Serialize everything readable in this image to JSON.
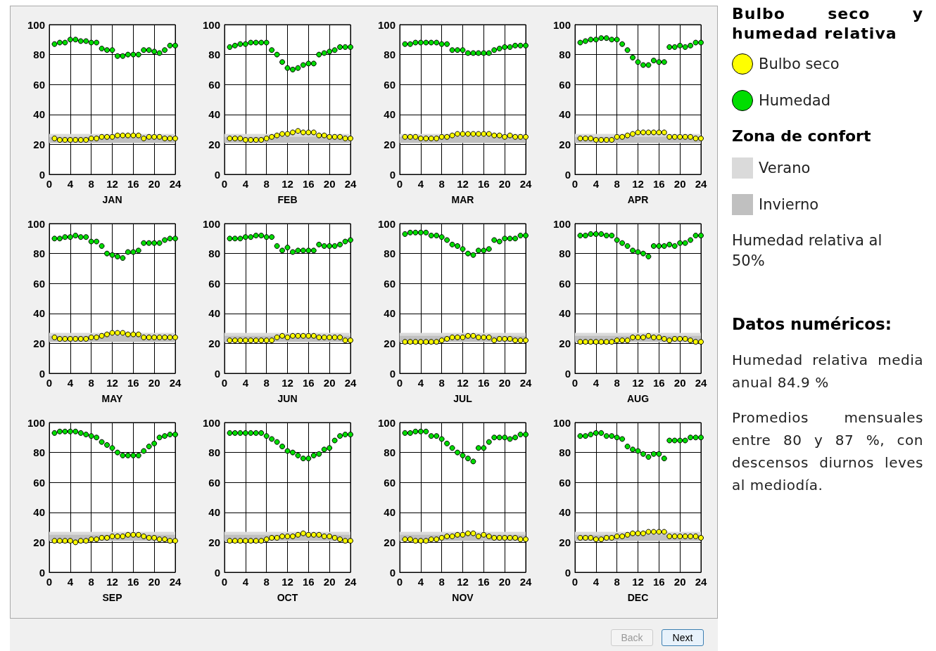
{
  "chart_data": [
    {
      "type": "scatter",
      "xlabel": "JAN",
      "legend": "right",
      "legend_title": "Bulbo seco y humedad relativa",
      "annotations": [
        "Zona de confort",
        "Humedad relativa al 50%"
      ],
      "x": [
        1,
        2,
        3,
        4,
        5,
        6,
        7,
        8,
        9,
        10,
        11,
        12,
        13,
        14,
        15,
        16,
        17,
        18,
        19,
        20,
        21,
        22,
        23,
        24
      ],
      "xlim": [
        0,
        24
      ],
      "xticks": [
        0,
        4,
        8,
        12,
        16,
        20,
        24
      ],
      "ylim": [
        0,
        100
      ],
      "yticks": [
        0,
        20,
        40,
        60,
        80,
        100
      ],
      "grid": true,
      "marker": "circle",
      "bands": [
        {
          "axis": "y",
          "from": 21,
          "to": 27,
          "label": "Verano",
          "color": "#dadada"
        },
        {
          "axis": "y",
          "from": 21,
          "to": 25,
          "label": "Invierno",
          "color": "#c0c0c0"
        }
      ],
      "series": [
        {
          "name": "Bulbo seco",
          "color": "#ffff00",
          "values": [
            24,
            23,
            23,
            23,
            23,
            23,
            23,
            24,
            24,
            25,
            25,
            25,
            26,
            26,
            26,
            26,
            26,
            24,
            25,
            25,
            25,
            24,
            24,
            24
          ]
        },
        {
          "name": "Humedad",
          "color": "#00dd00",
          "values": [
            87,
            88,
            88,
            90,
            90,
            89,
            89,
            88,
            88,
            84,
            83,
            83,
            79,
            79,
            80,
            80,
            80,
            83,
            83,
            82,
            81,
            83,
            86,
            86
          ]
        }
      ]
    },
    {
      "type": "scatter",
      "xlabel": "FEB",
      "x": [
        1,
        2,
        3,
        4,
        5,
        6,
        7,
        8,
        9,
        10,
        11,
        12,
        13,
        14,
        15,
        16,
        17,
        18,
        19,
        20,
        21,
        22,
        23,
        24
      ],
      "xlim": [
        0,
        24
      ],
      "xticks": [
        0,
        4,
        8,
        12,
        16,
        20,
        24
      ],
      "ylim": [
        0,
        100
      ],
      "yticks": [
        0,
        20,
        40,
        60,
        80,
        100
      ],
      "grid": true,
      "marker": "circle",
      "bands": [
        {
          "axis": "y",
          "from": 21,
          "to": 27,
          "color": "#dadada"
        },
        {
          "axis": "y",
          "from": 21,
          "to": 25,
          "color": "#c0c0c0"
        }
      ],
      "series": [
        {
          "color": "#ffff00",
          "values": [
            24,
            24,
            24,
            23,
            23,
            23,
            23,
            24,
            25,
            26,
            27,
            27,
            28,
            29,
            28,
            28,
            28,
            26,
            26,
            25,
            25,
            25,
            24,
            24
          ]
        },
        {
          "color": "#00dd00",
          "values": [
            85,
            86,
            87,
            87,
            88,
            88,
            88,
            88,
            83,
            80,
            75,
            71,
            70,
            71,
            73,
            74,
            74,
            80,
            81,
            82,
            83,
            85,
            85,
            85
          ]
        }
      ]
    },
    {
      "type": "scatter",
      "xlabel": "MAR",
      "x": [
        1,
        2,
        3,
        4,
        5,
        6,
        7,
        8,
        9,
        10,
        11,
        12,
        13,
        14,
        15,
        16,
        17,
        18,
        19,
        20,
        21,
        22,
        23,
        24
      ],
      "xlim": [
        0,
        24
      ],
      "xticks": [
        0,
        4,
        8,
        12,
        16,
        20,
        24
      ],
      "ylim": [
        0,
        100
      ],
      "yticks": [
        0,
        20,
        40,
        60,
        80,
        100
      ],
      "grid": true,
      "marker": "circle",
      "bands": [
        {
          "axis": "y",
          "from": 21,
          "to": 27,
          "color": "#dadada"
        },
        {
          "axis": "y",
          "from": 21,
          "to": 25,
          "color": "#c0c0c0"
        }
      ],
      "series": [
        {
          "color": "#ffff00",
          "values": [
            25,
            25,
            25,
            24,
            24,
            24,
            24,
            25,
            25,
            26,
            27,
            27,
            27,
            27,
            27,
            27,
            27,
            26,
            26,
            25,
            26,
            25,
            25,
            25
          ]
        },
        {
          "color": "#00dd00",
          "values": [
            87,
            87,
            88,
            88,
            88,
            88,
            88,
            87,
            87,
            83,
            83,
            83,
            81,
            81,
            81,
            81,
            81,
            83,
            84,
            85,
            85,
            86,
            86,
            86
          ]
        }
      ]
    },
    {
      "type": "scatter",
      "xlabel": "APR",
      "x": [
        1,
        2,
        3,
        4,
        5,
        6,
        7,
        8,
        9,
        10,
        11,
        12,
        13,
        14,
        15,
        16,
        17,
        18,
        19,
        20,
        21,
        22,
        23,
        24
      ],
      "xlim": [
        0,
        24
      ],
      "xticks": [
        0,
        4,
        8,
        12,
        16,
        20,
        24
      ],
      "ylim": [
        0,
        100
      ],
      "yticks": [
        0,
        20,
        40,
        60,
        80,
        100
      ],
      "grid": true,
      "marker": "circle",
      "bands": [
        {
          "axis": "y",
          "from": 21,
          "to": 27,
          "color": "#dadada"
        },
        {
          "axis": "y",
          "from": 21,
          "to": 25,
          "color": "#c0c0c0"
        }
      ],
      "series": [
        {
          "color": "#ffff00",
          "values": [
            24,
            24,
            24,
            23,
            23,
            23,
            23,
            25,
            25,
            26,
            27,
            28,
            28,
            28,
            28,
            28,
            28,
            25,
            25,
            25,
            25,
            25,
            24,
            24
          ]
        },
        {
          "color": "#00dd00",
          "values": [
            88,
            89,
            90,
            90,
            91,
            91,
            90,
            90,
            87,
            83,
            78,
            75,
            73,
            73,
            76,
            75,
            75,
            85,
            85,
            86,
            85,
            86,
            88,
            88
          ]
        }
      ]
    },
    {
      "type": "scatter",
      "xlabel": "MAY",
      "x": [
        1,
        2,
        3,
        4,
        5,
        6,
        7,
        8,
        9,
        10,
        11,
        12,
        13,
        14,
        15,
        16,
        17,
        18,
        19,
        20,
        21,
        22,
        23,
        24
      ],
      "xlim": [
        0,
        24
      ],
      "xticks": [
        0,
        4,
        8,
        12,
        16,
        20,
        24
      ],
      "ylim": [
        0,
        100
      ],
      "yticks": [
        0,
        20,
        40,
        60,
        80,
        100
      ],
      "grid": true,
      "marker": "circle",
      "bands": [
        {
          "axis": "y",
          "from": 21,
          "to": 27,
          "color": "#dadada"
        },
        {
          "axis": "y",
          "from": 21,
          "to": 25,
          "color": "#c0c0c0"
        }
      ],
      "series": [
        {
          "color": "#ffff00",
          "values": [
            24,
            23,
            23,
            23,
            23,
            23,
            23,
            24,
            24,
            25,
            26,
            27,
            27,
            27,
            26,
            26,
            26,
            24,
            24,
            24,
            24,
            24,
            24,
            24
          ]
        },
        {
          "color": "#00dd00",
          "values": [
            90,
            90,
            91,
            91,
            92,
            91,
            91,
            88,
            88,
            85,
            80,
            79,
            78,
            77,
            81,
            81,
            82,
            87,
            87,
            87,
            87,
            89,
            90,
            90
          ]
        }
      ]
    },
    {
      "type": "scatter",
      "xlabel": "JUN",
      "x": [
        1,
        2,
        3,
        4,
        5,
        6,
        7,
        8,
        9,
        10,
        11,
        12,
        13,
        14,
        15,
        16,
        17,
        18,
        19,
        20,
        21,
        22,
        23,
        24
      ],
      "xlim": [
        0,
        24
      ],
      "xticks": [
        0,
        4,
        8,
        12,
        16,
        20,
        24
      ],
      "ylim": [
        0,
        100
      ],
      "yticks": [
        0,
        20,
        40,
        60,
        80,
        100
      ],
      "grid": true,
      "marker": "circle",
      "bands": [
        {
          "axis": "y",
          "from": 21,
          "to": 27,
          "color": "#dadada"
        },
        {
          "axis": "y",
          "from": 21,
          "to": 25,
          "color": "#c0c0c0"
        }
      ],
      "series": [
        {
          "color": "#ffff00",
          "values": [
            22,
            22,
            22,
            22,
            22,
            22,
            22,
            22,
            22,
            24,
            25,
            24,
            25,
            25,
            25,
            25,
            25,
            24,
            24,
            24,
            24,
            24,
            22,
            22
          ]
        },
        {
          "color": "#00dd00",
          "values": [
            90,
            90,
            90,
            91,
            91,
            92,
            92,
            91,
            91,
            85,
            82,
            84,
            81,
            82,
            82,
            82,
            82,
            86,
            85,
            85,
            85,
            86,
            88,
            89
          ]
        }
      ]
    },
    {
      "type": "scatter",
      "xlabel": "JUL",
      "x": [
        1,
        2,
        3,
        4,
        5,
        6,
        7,
        8,
        9,
        10,
        11,
        12,
        13,
        14,
        15,
        16,
        17,
        18,
        19,
        20,
        21,
        22,
        23,
        24
      ],
      "xlim": [
        0,
        24
      ],
      "xticks": [
        0,
        4,
        8,
        12,
        16,
        20,
        24
      ],
      "ylim": [
        0,
        100
      ],
      "yticks": [
        0,
        20,
        40,
        60,
        80,
        100
      ],
      "grid": true,
      "marker": "circle",
      "bands": [
        {
          "axis": "y",
          "from": 21,
          "to": 27,
          "color": "#dadada"
        },
        {
          "axis": "y",
          "from": 21,
          "to": 25,
          "color": "#c0c0c0"
        }
      ],
      "series": [
        {
          "color": "#ffff00",
          "values": [
            21,
            21,
            21,
            21,
            21,
            21,
            21,
            22,
            23,
            24,
            24,
            24,
            25,
            25,
            24,
            24,
            24,
            22,
            23,
            23,
            23,
            22,
            22,
            22
          ]
        },
        {
          "color": "#00dd00",
          "values": [
            93,
            94,
            94,
            94,
            94,
            92,
            92,
            91,
            89,
            86,
            85,
            83,
            80,
            79,
            82,
            82,
            83,
            89,
            88,
            90,
            90,
            90,
            92,
            92
          ]
        }
      ]
    },
    {
      "type": "scatter",
      "xlabel": "AUG",
      "x": [
        1,
        2,
        3,
        4,
        5,
        6,
        7,
        8,
        9,
        10,
        11,
        12,
        13,
        14,
        15,
        16,
        17,
        18,
        19,
        20,
        21,
        22,
        23,
        24
      ],
      "xlim": [
        0,
        24
      ],
      "xticks": [
        0,
        4,
        8,
        12,
        16,
        20,
        24
      ],
      "ylim": [
        0,
        100
      ],
      "yticks": [
        0,
        20,
        40,
        60,
        80,
        100
      ],
      "grid": true,
      "marker": "circle",
      "bands": [
        {
          "axis": "y",
          "from": 21,
          "to": 27,
          "color": "#dadada"
        },
        {
          "axis": "y",
          "from": 21,
          "to": 25,
          "color": "#c0c0c0"
        }
      ],
      "series": [
        {
          "color": "#ffff00",
          "values": [
            21,
            21,
            21,
            21,
            21,
            21,
            21,
            22,
            22,
            22,
            24,
            24,
            24,
            25,
            24,
            24,
            23,
            22,
            23,
            23,
            23,
            22,
            21,
            21
          ]
        },
        {
          "color": "#00dd00",
          "values": [
            92,
            92,
            93,
            93,
            93,
            92,
            92,
            89,
            87,
            85,
            82,
            81,
            80,
            78,
            85,
            85,
            85,
            86,
            85,
            87,
            87,
            89,
            92,
            92
          ]
        }
      ]
    },
    {
      "type": "scatter",
      "xlabel": "SEP",
      "x": [
        1,
        2,
        3,
        4,
        5,
        6,
        7,
        8,
        9,
        10,
        11,
        12,
        13,
        14,
        15,
        16,
        17,
        18,
        19,
        20,
        21,
        22,
        23,
        24
      ],
      "xlim": [
        0,
        24
      ],
      "xticks": [
        0,
        4,
        8,
        12,
        16,
        20,
        24
      ],
      "ylim": [
        0,
        100
      ],
      "yticks": [
        0,
        20,
        40,
        60,
        80,
        100
      ],
      "grid": true,
      "marker": "circle",
      "bands": [
        {
          "axis": "y",
          "from": 21,
          "to": 27,
          "color": "#dadada"
        },
        {
          "axis": "y",
          "from": 21,
          "to": 25,
          "color": "#c0c0c0"
        }
      ],
      "series": [
        {
          "color": "#ffff00",
          "values": [
            21,
            21,
            21,
            21,
            20,
            21,
            21,
            22,
            22,
            23,
            23,
            24,
            24,
            24,
            25,
            25,
            25,
            24,
            23,
            23,
            22,
            22,
            21,
            21
          ]
        },
        {
          "color": "#00dd00",
          "values": [
            93,
            94,
            94,
            94,
            94,
            93,
            92,
            91,
            90,
            87,
            85,
            83,
            80,
            78,
            78,
            78,
            78,
            81,
            84,
            86,
            90,
            91,
            92,
            92
          ]
        }
      ]
    },
    {
      "type": "scatter",
      "xlabel": "OCT",
      "x": [
        1,
        2,
        3,
        4,
        5,
        6,
        7,
        8,
        9,
        10,
        11,
        12,
        13,
        14,
        15,
        16,
        17,
        18,
        19,
        20,
        21,
        22,
        23,
        24
      ],
      "xlim": [
        0,
        24
      ],
      "xticks": [
        0,
        4,
        8,
        12,
        16,
        20,
        24
      ],
      "ylim": [
        0,
        100
      ],
      "yticks": [
        0,
        20,
        40,
        60,
        80,
        100
      ],
      "grid": true,
      "marker": "circle",
      "bands": [
        {
          "axis": "y",
          "from": 21,
          "to": 27,
          "color": "#dadada"
        },
        {
          "axis": "y",
          "from": 21,
          "to": 25,
          "color": "#c0c0c0"
        }
      ],
      "series": [
        {
          "color": "#ffff00",
          "values": [
            21,
            21,
            21,
            21,
            21,
            21,
            21,
            22,
            23,
            23,
            24,
            24,
            24,
            25,
            26,
            25,
            25,
            25,
            24,
            24,
            23,
            22,
            21,
            21
          ]
        },
        {
          "color": "#00dd00",
          "values": [
            93,
            93,
            93,
            93,
            93,
            93,
            93,
            91,
            89,
            87,
            84,
            81,
            80,
            78,
            76,
            76,
            78,
            79,
            82,
            83,
            88,
            91,
            92,
            92
          ]
        }
      ]
    },
    {
      "type": "scatter",
      "xlabel": "NOV",
      "x": [
        1,
        2,
        3,
        4,
        5,
        6,
        7,
        8,
        9,
        10,
        11,
        12,
        13,
        14,
        15,
        16,
        17,
        18,
        19,
        20,
        21,
        22,
        23,
        24
      ],
      "xlim": [
        0,
        24
      ],
      "xticks": [
        0,
        4,
        8,
        12,
        16,
        20,
        24
      ],
      "ylim": [
        0,
        100
      ],
      "yticks": [
        0,
        20,
        40,
        60,
        80,
        100
      ],
      "grid": true,
      "marker": "circle",
      "bands": [
        {
          "axis": "y",
          "from": 21,
          "to": 27,
          "color": "#dadada"
        },
        {
          "axis": "y",
          "from": 21,
          "to": 25,
          "color": "#c0c0c0"
        }
      ],
      "series": [
        {
          "color": "#ffff00",
          "values": [
            22,
            22,
            21,
            21,
            21,
            22,
            22,
            23,
            24,
            24,
            25,
            25,
            26,
            26,
            24,
            25,
            24,
            23,
            23,
            23,
            23,
            23,
            22,
            22
          ]
        },
        {
          "color": "#00dd00",
          "values": [
            93,
            93,
            94,
            94,
            94,
            91,
            91,
            89,
            86,
            83,
            80,
            78,
            76,
            74,
            83,
            83,
            87,
            90,
            90,
            90,
            89,
            90,
            92,
            92
          ]
        }
      ]
    },
    {
      "type": "scatter",
      "xlabel": "DEC",
      "x": [
        1,
        2,
        3,
        4,
        5,
        6,
        7,
        8,
        9,
        10,
        11,
        12,
        13,
        14,
        15,
        16,
        17,
        18,
        19,
        20,
        21,
        22,
        23,
        24
      ],
      "xlim": [
        0,
        24
      ],
      "xticks": [
        0,
        4,
        8,
        12,
        16,
        20,
        24
      ],
      "ylim": [
        0,
        100
      ],
      "yticks": [
        0,
        20,
        40,
        60,
        80,
        100
      ],
      "grid": true,
      "marker": "circle",
      "bands": [
        {
          "axis": "y",
          "from": 21,
          "to": 27,
          "color": "#dadada"
        },
        {
          "axis": "y",
          "from": 21,
          "to": 25,
          "color": "#c0c0c0"
        }
      ],
      "series": [
        {
          "color": "#ffff00",
          "values": [
            23,
            23,
            23,
            22,
            22,
            23,
            23,
            24,
            24,
            25,
            26,
            26,
            26,
            27,
            27,
            27,
            27,
            24,
            24,
            24,
            24,
            24,
            24,
            23
          ]
        },
        {
          "color": "#00dd00",
          "values": [
            91,
            91,
            92,
            93,
            93,
            91,
            91,
            90,
            89,
            84,
            82,
            81,
            79,
            77,
            79,
            79,
            76,
            88,
            88,
            88,
            88,
            90,
            90,
            90
          ]
        }
      ]
    },
    {
      "type": "other",
      "title": "Datos numéricos:",
      "annotations": [
        "Humedad relativa media anual  84.9 %",
        "Promedios mensuales entre 80 y 87 %, con descensos diurnos leves al mediodía.",
        "Back",
        "Next"
      ]
    }
  ]
}
